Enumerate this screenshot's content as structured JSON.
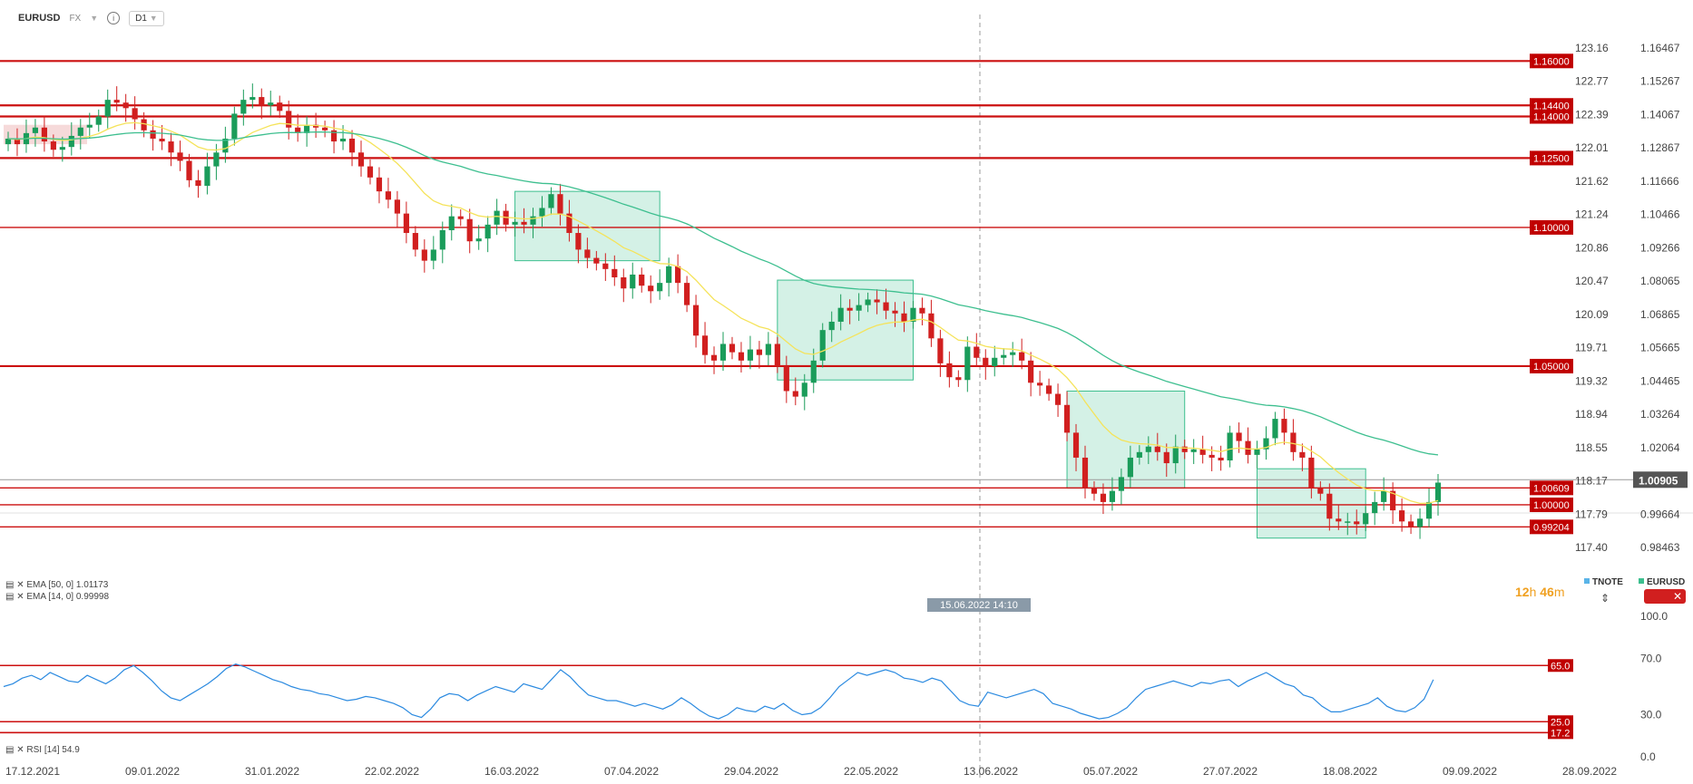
{
  "toolbar": {
    "symbol": "EURUSD",
    "asset_class": "FX",
    "timeframe": "D1"
  },
  "chart_data": [
    {
      "type": "candlestick",
      "symbol": "EURUSD",
      "y_left_ticks": [
        "123.16",
        "122.77",
        "122.39",
        "122.01",
        "121.62",
        "121.24",
        "120.86",
        "120.47",
        "120.09",
        "119.71",
        "119.32",
        "118.94",
        "118.55",
        "118.17",
        "117.79",
        "117.40"
      ],
      "y_right_ticks": [
        "1.16467",
        "1.15267",
        "1.14067",
        "1.12867",
        "1.11666",
        "1.10466",
        "1.09266",
        "1.08065",
        "1.06865",
        "1.05665",
        "1.04465",
        "1.03264",
        "1.02064",
        "1.00864",
        "0.99664",
        "0.98463"
      ],
      "ylim": [
        0.9846,
        1.1647
      ],
      "x_ticks": [
        "17.12.2021",
        "09.01.2022",
        "31.01.2022",
        "22.02.2022",
        "16.03.2022",
        "07.04.2022",
        "29.04.2022",
        "22.05.2022",
        "13.06.2022",
        "05.07.2022",
        "27.07.2022",
        "18.08.2022",
        "09.09.2022",
        "28.09.2022"
      ],
      "current_price": "1.00905",
      "crosshair_date": "15.06.2022 14:10",
      "horizontal_levels": [
        "1.16000",
        "1.14400",
        "1.14000",
        "1.12500",
        "1.10000",
        "1.05000",
        "1.00609",
        "1.00000",
        "0.99204"
      ],
      "level_values": [
        1.16,
        1.144,
        1.14,
        1.125,
        1.1,
        1.05,
        1.00609,
        1.0,
        0.99204
      ],
      "close_series": [
        1.132,
        1.13,
        1.134,
        1.136,
        1.131,
        1.128,
        1.129,
        1.133,
        1.136,
        1.137,
        1.14,
        1.146,
        1.145,
        1.143,
        1.139,
        1.135,
        1.132,
        1.131,
        1.127,
        1.124,
        1.117,
        1.115,
        1.122,
        1.127,
        1.132,
        1.141,
        1.146,
        1.147,
        1.144,
        1.145,
        1.142,
        1.136,
        1.134,
        1.137,
        1.136,
        1.135,
        1.131,
        1.132,
        1.127,
        1.122,
        1.118,
        1.113,
        1.11,
        1.105,
        1.098,
        1.092,
        1.088,
        1.092,
        1.099,
        1.104,
        1.103,
        1.095,
        1.096,
        1.101,
        1.106,
        1.101,
        1.102,
        1.101,
        1.104,
        1.107,
        1.112,
        1.105,
        1.098,
        1.092,
        1.089,
        1.087,
        1.085,
        1.082,
        1.078,
        1.083,
        1.079,
        1.077,
        1.08,
        1.086,
        1.08,
        1.072,
        1.061,
        1.054,
        1.052,
        1.058,
        1.055,
        1.052,
        1.056,
        1.054,
        1.058,
        1.05,
        1.041,
        1.039,
        1.044,
        1.052,
        1.063,
        1.066,
        1.071,
        1.07,
        1.072,
        1.074,
        1.073,
        1.07,
        1.069,
        1.066,
        1.071,
        1.069,
        1.06,
        1.051,
        1.046,
        1.045,
        1.057,
        1.053,
        1.05,
        1.053,
        1.054,
        1.055,
        1.052,
        1.044,
        1.043,
        1.04,
        1.036,
        1.026,
        1.017,
        1.006,
        1.004,
        1.001,
        1.005,
        1.01,
        1.017,
        1.019,
        1.021,
        1.019,
        1.015,
        1.021,
        1.019,
        1.02,
        1.018,
        1.017,
        1.016,
        1.026,
        1.023,
        1.018,
        1.02,
        1.024,
        1.031,
        1.026,
        1.019,
        1.017,
        1.006,
        1.004,
        0.995,
        0.994,
        0.994,
        0.993,
        0.997,
        1.001,
        1.005,
        0.998,
        0.994,
        0.992,
        0.995,
        1.001,
        1.008
      ],
      "ema50_label": "EMA [50, 0] 1.01173",
      "ema14_label": "EMA [14, 0] 0.99998",
      "ema50_color": "#3dbf8f",
      "ema14_color": "#f5e35a",
      "instrument_tags": [
        "TNOTE",
        "EURUSD"
      ],
      "up_color": "#1a9c5a",
      "down_color": "#d11f1f"
    },
    {
      "type": "line",
      "indicator": "RSI",
      "label": "RSI [14] 54.9",
      "y_ticks": [
        "100.0",
        "70.0",
        "30.0",
        "0.0"
      ],
      "ylim": [
        0,
        100
      ],
      "levels": [
        "65.0",
        "25.0",
        "17.2"
      ],
      "level_values": [
        65,
        25,
        17.2
      ],
      "color": "#2b8ae0",
      "values": [
        50,
        52,
        56,
        58,
        55,
        60,
        57,
        54,
        53,
        58,
        55,
        52,
        56,
        62,
        65,
        60,
        54,
        47,
        42,
        40,
        44,
        48,
        52,
        57,
        63,
        66,
        64,
        61,
        58,
        55,
        53,
        50,
        48,
        47,
        45,
        44,
        42,
        40,
        41,
        43,
        42,
        40,
        38,
        35,
        30,
        28,
        34,
        42,
        45,
        44,
        40,
        44,
        47,
        50,
        48,
        46,
        52,
        50,
        48,
        55,
        62,
        57,
        50,
        44,
        42,
        40,
        40,
        38,
        36,
        38,
        36,
        34,
        37,
        42,
        38,
        33,
        29,
        27,
        30,
        35,
        33,
        32,
        36,
        34,
        38,
        33,
        30,
        31,
        35,
        42,
        50,
        55,
        60,
        58,
        60,
        62,
        60,
        56,
        55,
        53,
        56,
        54,
        47,
        40,
        37,
        36,
        46,
        44,
        42,
        44,
        46,
        48,
        45,
        38,
        36,
        34,
        31,
        29,
        27,
        28,
        31,
        35,
        42,
        48,
        50,
        52,
        54,
        52,
        50,
        53,
        52,
        54,
        55,
        50,
        54,
        57,
        60,
        56,
        52,
        50,
        44,
        42,
        36,
        32,
        32,
        34,
        36,
        38,
        42,
        36,
        33,
        32,
        35,
        41,
        54.9
      ],
      "extra_values": []
    }
  ],
  "timer": {
    "hours": "12",
    "minutes": "46",
    "h_unit": "h",
    "m_unit": "m"
  }
}
